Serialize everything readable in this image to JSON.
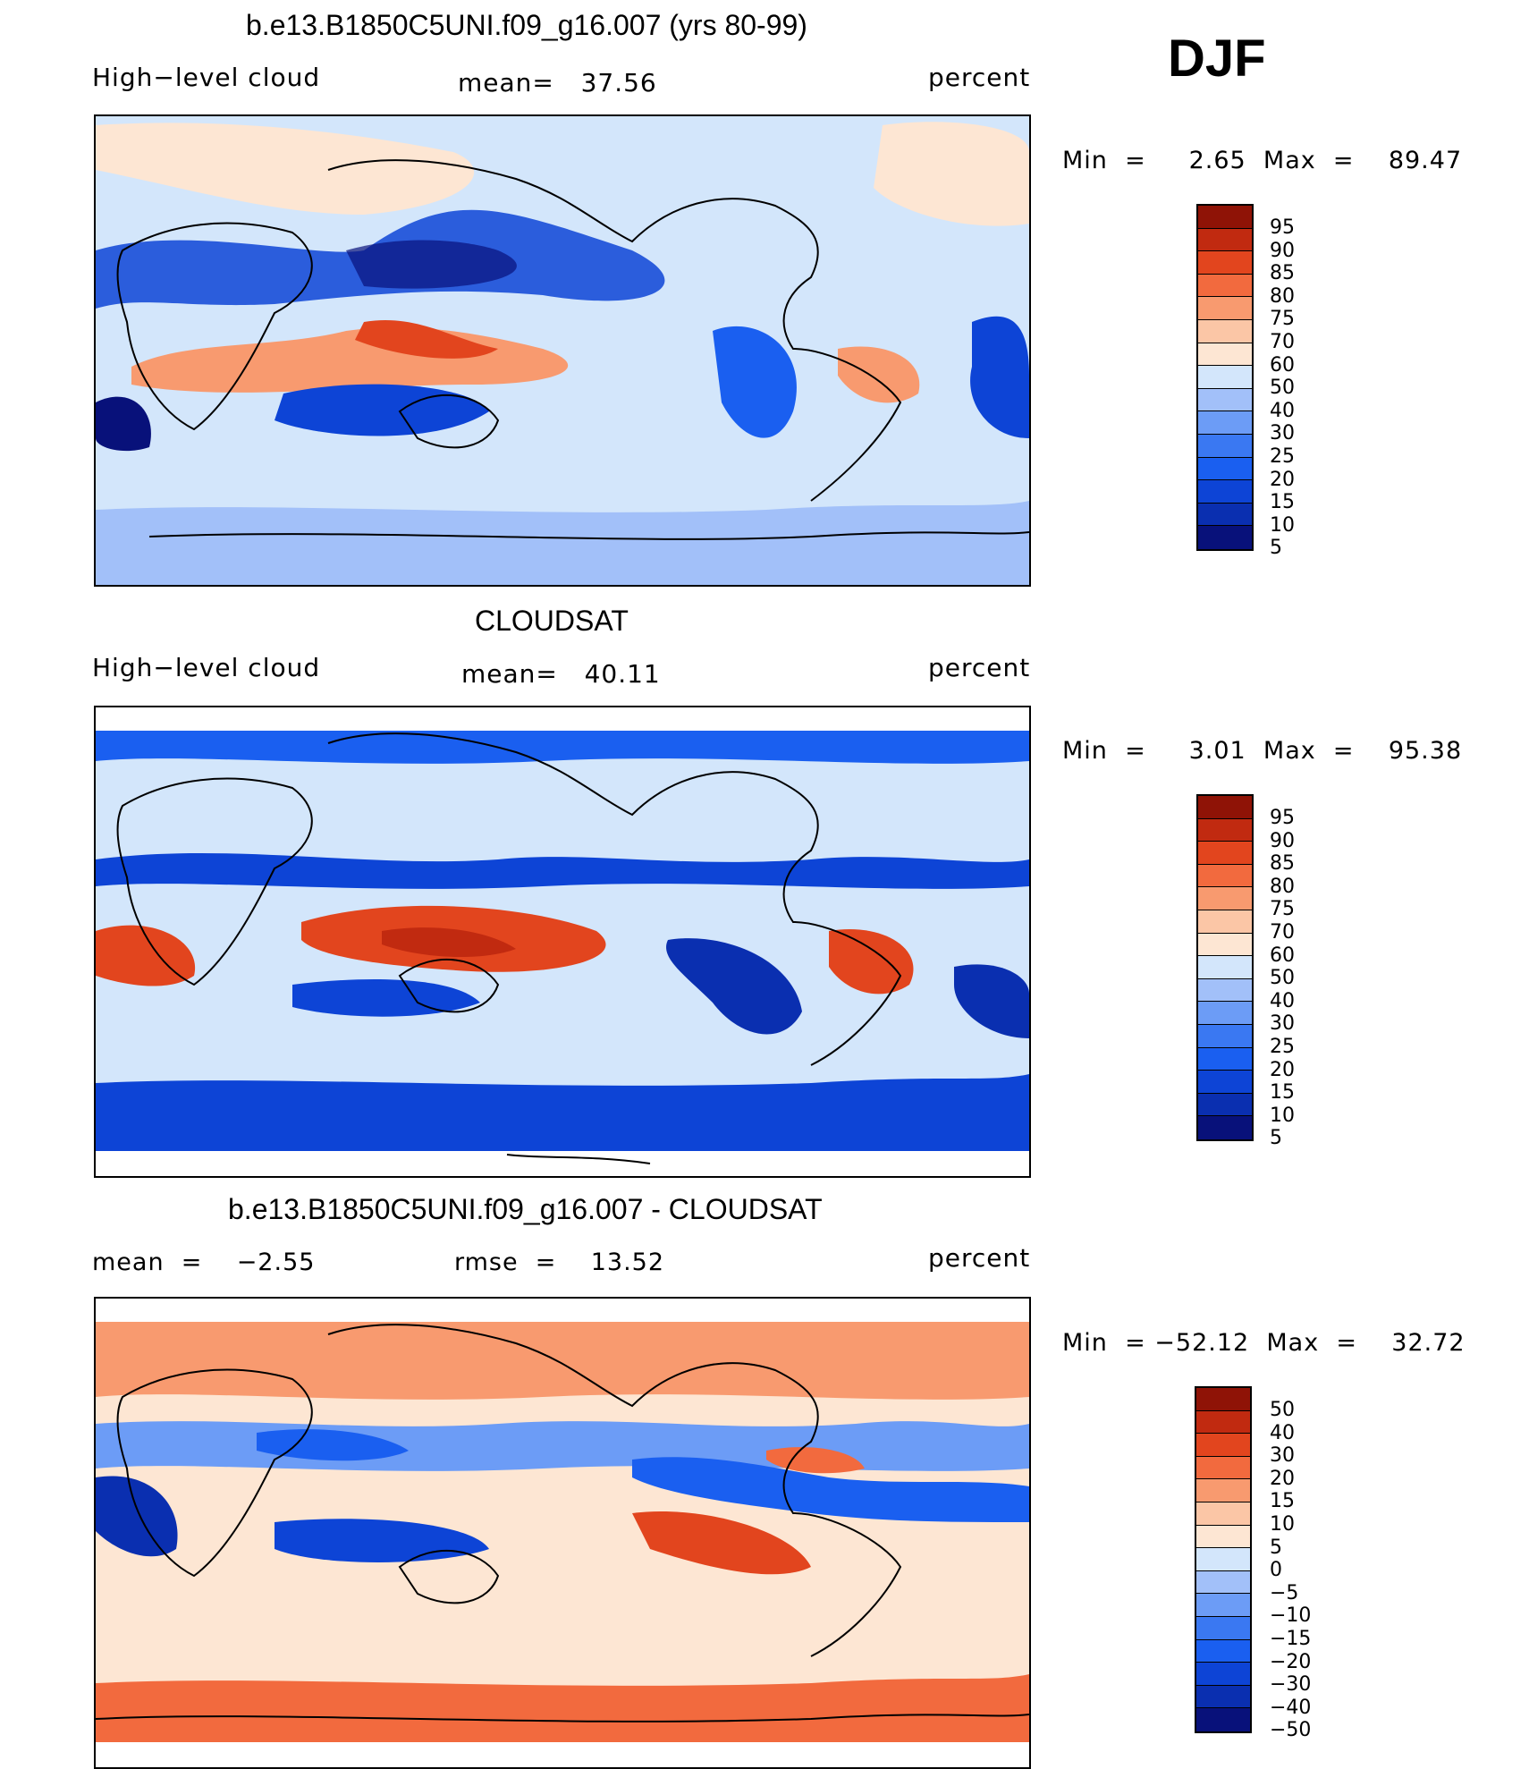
{
  "season": "DJF",
  "colors": {
    "scale_blue_to_red": [
      "#08117a",
      "#0a2fb0",
      "#0d44d6",
      "#1a5ff0",
      "#3a78f2",
      "#6c9cf6",
      "#a2c0f9",
      "#d3e6fb",
      "#fde6d3",
      "#fbc6a6",
      "#f89a6f",
      "#f26a3e",
      "#e2451e",
      "#c12a10",
      "#8f1306"
    ],
    "coast": "#000000"
  },
  "panels": [
    {
      "title": "b.e13.B1850C5UNI.f09_g16.007 (yrs 80-99)",
      "left_text": "High−level cloud",
      "center_text": "mean=   37.56",
      "right_text": "percent",
      "stats": "Min  =     2.65  Max  =    89.47",
      "colorbar_levels": [
        "95",
        "90",
        "85",
        "80",
        "75",
        "70",
        "60",
        "50",
        "40",
        "30",
        "25",
        "20",
        "15",
        "10",
        "5"
      ]
    },
    {
      "title": "CLOUDSAT",
      "left_text": "High−level cloud",
      "center_text": "mean=   40.11",
      "right_text": "percent",
      "stats": "Min  =     3.01  Max  =    95.38",
      "colorbar_levels": [
        "95",
        "90",
        "85",
        "80",
        "75",
        "70",
        "60",
        "50",
        "40",
        "30",
        "25",
        "20",
        "15",
        "10",
        "5"
      ]
    },
    {
      "title": "b.e13.B1850C5UNI.f09_g16.007 - CLOUDSAT",
      "left_text": "mean  =    −2.55",
      "center_text": "rmse  =    13.52",
      "right_text": "percent",
      "stats": "Min  = −52.12  Max  =    32.72",
      "colorbar_levels": [
        "50",
        "40",
        "30",
        "20",
        "15",
        "10",
        "5",
        "0",
        "−5",
        "−10",
        "−15",
        "−20",
        "−30",
        "−40",
        "−50"
      ]
    }
  ]
}
